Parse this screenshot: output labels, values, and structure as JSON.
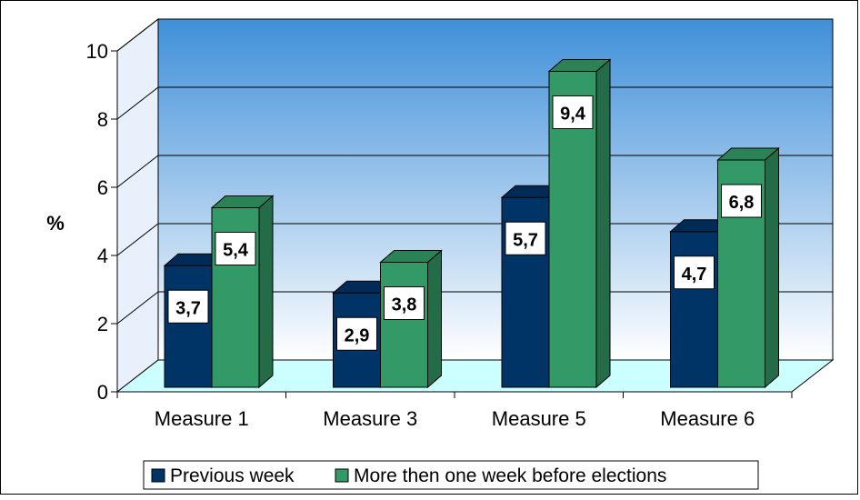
{
  "chart_data": {
    "type": "bar",
    "ylabel": "%",
    "ylim": [
      0,
      10
    ],
    "yticks": [
      0,
      2,
      4,
      6,
      8,
      10
    ],
    "categories": [
      "Measure 1",
      "Measure 3",
      "Measure 5",
      "Measure 6"
    ],
    "series": [
      {
        "name": "Previous week",
        "values": [
          3.7,
          2.9,
          5.7,
          4.7
        ],
        "labels": [
          "3,7",
          "2,9",
          "5,7",
          "4,7"
        ],
        "color": "#003366"
      },
      {
        "name": "More then one week before elections",
        "values": [
          5.4,
          3.8,
          9.4,
          6.8
        ],
        "labels": [
          "5,4",
          "3,8",
          "9,4",
          "6,8"
        ],
        "color": "#339966"
      }
    ],
    "grid": true,
    "legend": "bottom",
    "style": "3d-clustered-column",
    "wall_gradient": [
      "#3f8fd9",
      "#ffffff"
    ],
    "floor_color": "#ccffff"
  }
}
